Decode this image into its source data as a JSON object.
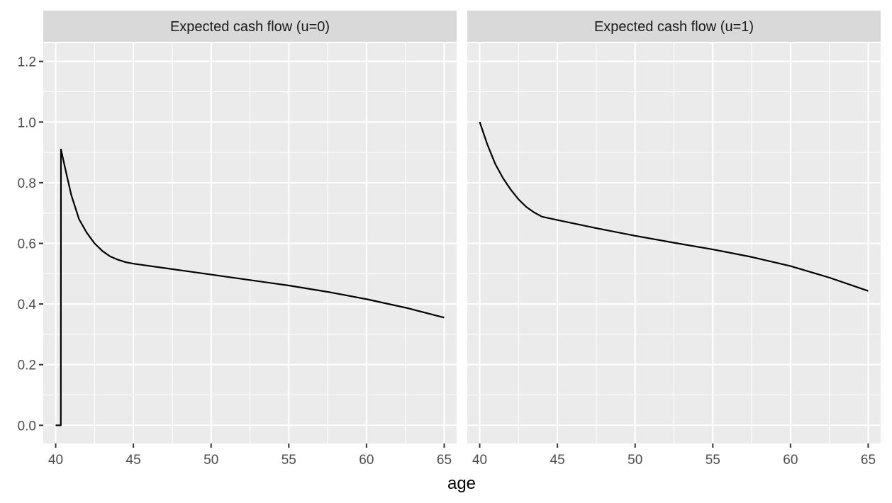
{
  "chart_data": {
    "type": "line",
    "xlabel": "age",
    "ylabel": "",
    "xlim": [
      39.2,
      65.8
    ],
    "ylim": [
      -0.06,
      1.26
    ],
    "x_ticks": [
      40,
      45,
      50,
      55,
      60,
      65
    ],
    "x_tick_labels": [
      "40",
      "45",
      "50",
      "55",
      "60",
      "65"
    ],
    "y_ticks": [
      0.0,
      0.2,
      0.4,
      0.6,
      0.8,
      1.0,
      1.2
    ],
    "y_tick_labels": [
      "0.0",
      "0.2",
      "0.4",
      "0.6",
      "0.8",
      "1.0",
      "1.2"
    ],
    "line_color": "#000000",
    "panels": [
      {
        "title": "Expected cash flow (u=0)",
        "points": [
          [
            40.0,
            0.0
          ],
          [
            40.33,
            0.0
          ],
          [
            40.34,
            0.91
          ],
          [
            40.6,
            0.85
          ],
          [
            41.0,
            0.76
          ],
          [
            41.5,
            0.68
          ],
          [
            42.0,
            0.635
          ],
          [
            42.5,
            0.6
          ],
          [
            43.0,
            0.575
          ],
          [
            43.5,
            0.557
          ],
          [
            44.0,
            0.546
          ],
          [
            44.5,
            0.538
          ],
          [
            45.0,
            0.533
          ],
          [
            47.5,
            0.515
          ],
          [
            50.0,
            0.497
          ],
          [
            52.5,
            0.479
          ],
          [
            55.0,
            0.461
          ],
          [
            57.5,
            0.44
          ],
          [
            60.0,
            0.416
          ],
          [
            62.5,
            0.388
          ],
          [
            65.0,
            0.355
          ]
        ]
      },
      {
        "title": "Expected cash flow (u=1)",
        "points": [
          [
            40.0,
            1.0
          ],
          [
            40.5,
            0.925
          ],
          [
            41.0,
            0.862
          ],
          [
            41.5,
            0.815
          ],
          [
            42.0,
            0.777
          ],
          [
            42.5,
            0.745
          ],
          [
            43.0,
            0.72
          ],
          [
            43.5,
            0.702
          ],
          [
            44.0,
            0.688
          ],
          [
            45.0,
            0.677
          ],
          [
            47.5,
            0.65
          ],
          [
            50.0,
            0.625
          ],
          [
            52.5,
            0.602
          ],
          [
            55.0,
            0.58
          ],
          [
            57.5,
            0.555
          ],
          [
            60.0,
            0.525
          ],
          [
            62.5,
            0.487
          ],
          [
            65.0,
            0.443
          ]
        ]
      }
    ]
  }
}
